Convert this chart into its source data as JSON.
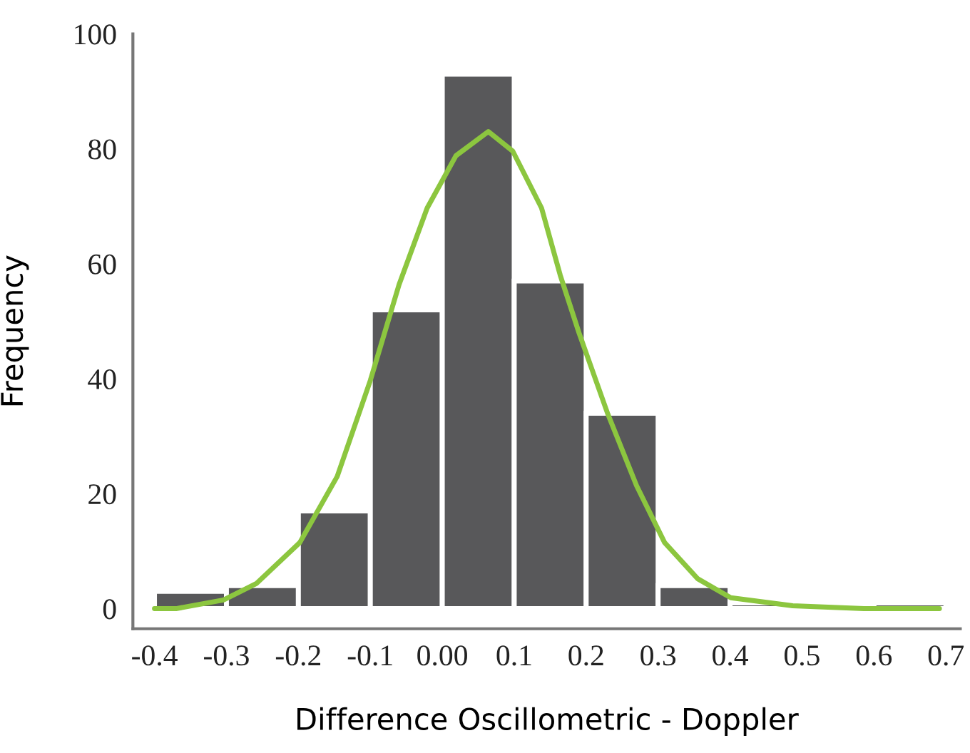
{
  "chart_data": {
    "type": "histogram",
    "xlabel": "Difference Oscillometric - Doppler",
    "ylabel": "Frequency",
    "bins": [
      -0.4,
      -0.3,
      -0.2,
      -0.1,
      0.0,
      0.1,
      0.2,
      0.3,
      0.4,
      0.5,
      0.6,
      0.7
    ],
    "values": [
      3,
      4,
      17,
      52,
      93,
      57,
      34,
      4,
      1,
      0,
      1
    ],
    "color": "#58585a",
    "series": [
      {
        "type": "line",
        "color": "#8cc63f",
        "x": [
          -0.4,
          -0.37,
          -0.304,
          -0.258,
          -0.198,
          -0.146,
          -0.1,
          -0.06,
          -0.021,
          0.019,
          0.064,
          0.098,
          0.138,
          0.164,
          0.19,
          0.23,
          0.27,
          0.309,
          0.355,
          0.401,
          0.487,
          0.586,
          0.691
        ],
        "values": [
          0,
          0,
          1.5,
          4.4,
          11.5,
          23,
          39.7,
          56.4,
          69.7,
          78.8,
          83,
          79.6,
          69.7,
          58,
          48,
          33.9,
          21.4,
          11.5,
          5.2,
          1.9,
          0.5,
          0,
          0
        ]
      }
    ],
    "xlim": [
      -0.43,
      0.72
    ],
    "ylim": [
      -3.5,
      100
    ],
    "xticks": [
      -0.4,
      -0.3,
      -0.2,
      -0.1,
      {
        "value": 0,
        "label": "0.00"
      },
      0.1,
      0.2,
      0.3,
      0.4,
      0.5,
      0.6,
      0.7
    ],
    "yticks": [
      0,
      20,
      40,
      60,
      80,
      100
    ],
    "grid": false,
    "legend": false
  }
}
